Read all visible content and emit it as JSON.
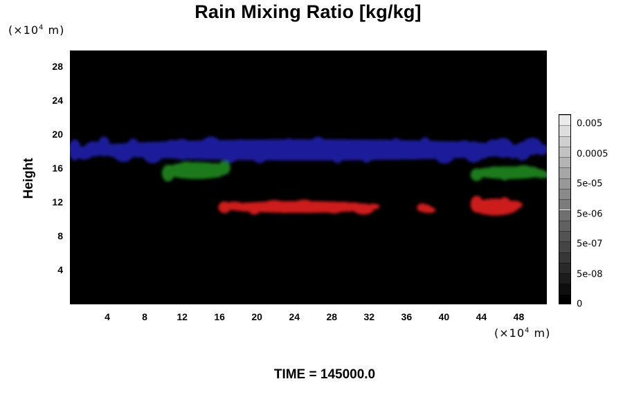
{
  "chart_data": {
    "type": "heatmap",
    "title": "Rain Mixing Ratio [kg/kg]",
    "ylabel": "Height",
    "x_unit_prefix": "(×10",
    "x_unit_exp": "4",
    "x_unit_suffix": " m)",
    "y_unit_prefix": "(×10",
    "y_unit_exp": "4",
    "y_unit_suffix": " m)",
    "xlim": [
      0,
      51
    ],
    "ylim": [
      0,
      30
    ],
    "x_ticks": [
      4,
      8,
      12,
      16,
      20,
      24,
      28,
      32,
      36,
      40,
      44,
      48
    ],
    "y_ticks": [
      4,
      8,
      12,
      16,
      20,
      24,
      28
    ],
    "x_tick_labels": [
      "4",
      "8",
      "12",
      "16",
      "20",
      "24",
      "28",
      "32",
      "36",
      "40",
      "44",
      "48"
    ],
    "y_tick_labels": [
      "4",
      "8",
      "12",
      "16",
      "20",
      "24",
      "28"
    ],
    "background_color": "#000000",
    "regions": [
      {
        "color": "#1a1a9a",
        "x_range": [
          0,
          51
        ],
        "y_range": [
          17,
          19.5
        ]
      },
      {
        "color": "#1e7a1e",
        "x_range": [
          10,
          17
        ],
        "y_range": [
          14.8,
          16.8
        ]
      },
      {
        "color": "#1e7a1e",
        "x_range": [
          43,
          51
        ],
        "y_range": [
          14.8,
          16.3
        ]
      },
      {
        "color": "#cc1a1a",
        "x_range": [
          16,
          33
        ],
        "y_range": [
          10.8,
          12.2
        ]
      },
      {
        "color": "#cc1a1a",
        "x_range": [
          37.5,
          38.7
        ],
        "y_range": [
          10.8,
          11.8
        ]
      },
      {
        "color": "#cc1a1a",
        "x_range": [
          43,
          48
        ],
        "y_range": [
          10.5,
          12.5
        ]
      }
    ],
    "colorbar": {
      "tick_labels": [
        "0.005",
        "0.0005",
        "5e-05",
        "5e-06",
        "5e-07",
        "5e-08",
        "0"
      ],
      "levels": 18
    }
  },
  "footer": {
    "time_label": "TIME = 145000.0"
  }
}
